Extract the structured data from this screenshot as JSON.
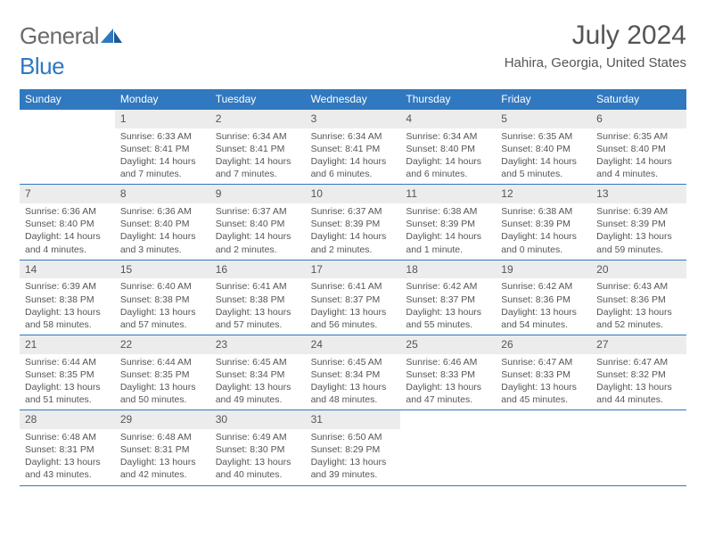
{
  "brand": {
    "part1": "General",
    "part2": "Blue"
  },
  "title": "July 2024",
  "location": "Hahira, Georgia, United States",
  "colors": {
    "header_bar": "#3078bf",
    "daynum_bg": "#ececec",
    "text": "#555555",
    "rule": "#3078bf"
  },
  "weekdays": [
    "Sunday",
    "Monday",
    "Tuesday",
    "Wednesday",
    "Thursday",
    "Friday",
    "Saturday"
  ],
  "weeks": [
    [
      {
        "n": "",
        "sr": "",
        "ss": "",
        "dl": ""
      },
      {
        "n": "1",
        "sr": "Sunrise: 6:33 AM",
        "ss": "Sunset: 8:41 PM",
        "dl": "Daylight: 14 hours and 7 minutes."
      },
      {
        "n": "2",
        "sr": "Sunrise: 6:34 AM",
        "ss": "Sunset: 8:41 PM",
        "dl": "Daylight: 14 hours and 7 minutes."
      },
      {
        "n": "3",
        "sr": "Sunrise: 6:34 AM",
        "ss": "Sunset: 8:41 PM",
        "dl": "Daylight: 14 hours and 6 minutes."
      },
      {
        "n": "4",
        "sr": "Sunrise: 6:34 AM",
        "ss": "Sunset: 8:40 PM",
        "dl": "Daylight: 14 hours and 6 minutes."
      },
      {
        "n": "5",
        "sr": "Sunrise: 6:35 AM",
        "ss": "Sunset: 8:40 PM",
        "dl": "Daylight: 14 hours and 5 minutes."
      },
      {
        "n": "6",
        "sr": "Sunrise: 6:35 AM",
        "ss": "Sunset: 8:40 PM",
        "dl": "Daylight: 14 hours and 4 minutes."
      }
    ],
    [
      {
        "n": "7",
        "sr": "Sunrise: 6:36 AM",
        "ss": "Sunset: 8:40 PM",
        "dl": "Daylight: 14 hours and 4 minutes."
      },
      {
        "n": "8",
        "sr": "Sunrise: 6:36 AM",
        "ss": "Sunset: 8:40 PM",
        "dl": "Daylight: 14 hours and 3 minutes."
      },
      {
        "n": "9",
        "sr": "Sunrise: 6:37 AM",
        "ss": "Sunset: 8:40 PM",
        "dl": "Daylight: 14 hours and 2 minutes."
      },
      {
        "n": "10",
        "sr": "Sunrise: 6:37 AM",
        "ss": "Sunset: 8:39 PM",
        "dl": "Daylight: 14 hours and 2 minutes."
      },
      {
        "n": "11",
        "sr": "Sunrise: 6:38 AM",
        "ss": "Sunset: 8:39 PM",
        "dl": "Daylight: 14 hours and 1 minute."
      },
      {
        "n": "12",
        "sr": "Sunrise: 6:38 AM",
        "ss": "Sunset: 8:39 PM",
        "dl": "Daylight: 14 hours and 0 minutes."
      },
      {
        "n": "13",
        "sr": "Sunrise: 6:39 AM",
        "ss": "Sunset: 8:39 PM",
        "dl": "Daylight: 13 hours and 59 minutes."
      }
    ],
    [
      {
        "n": "14",
        "sr": "Sunrise: 6:39 AM",
        "ss": "Sunset: 8:38 PM",
        "dl": "Daylight: 13 hours and 58 minutes."
      },
      {
        "n": "15",
        "sr": "Sunrise: 6:40 AM",
        "ss": "Sunset: 8:38 PM",
        "dl": "Daylight: 13 hours and 57 minutes."
      },
      {
        "n": "16",
        "sr": "Sunrise: 6:41 AM",
        "ss": "Sunset: 8:38 PM",
        "dl": "Daylight: 13 hours and 57 minutes."
      },
      {
        "n": "17",
        "sr": "Sunrise: 6:41 AM",
        "ss": "Sunset: 8:37 PM",
        "dl": "Daylight: 13 hours and 56 minutes."
      },
      {
        "n": "18",
        "sr": "Sunrise: 6:42 AM",
        "ss": "Sunset: 8:37 PM",
        "dl": "Daylight: 13 hours and 55 minutes."
      },
      {
        "n": "19",
        "sr": "Sunrise: 6:42 AM",
        "ss": "Sunset: 8:36 PM",
        "dl": "Daylight: 13 hours and 54 minutes."
      },
      {
        "n": "20",
        "sr": "Sunrise: 6:43 AM",
        "ss": "Sunset: 8:36 PM",
        "dl": "Daylight: 13 hours and 52 minutes."
      }
    ],
    [
      {
        "n": "21",
        "sr": "Sunrise: 6:44 AM",
        "ss": "Sunset: 8:35 PM",
        "dl": "Daylight: 13 hours and 51 minutes."
      },
      {
        "n": "22",
        "sr": "Sunrise: 6:44 AM",
        "ss": "Sunset: 8:35 PM",
        "dl": "Daylight: 13 hours and 50 minutes."
      },
      {
        "n": "23",
        "sr": "Sunrise: 6:45 AM",
        "ss": "Sunset: 8:34 PM",
        "dl": "Daylight: 13 hours and 49 minutes."
      },
      {
        "n": "24",
        "sr": "Sunrise: 6:45 AM",
        "ss": "Sunset: 8:34 PM",
        "dl": "Daylight: 13 hours and 48 minutes."
      },
      {
        "n": "25",
        "sr": "Sunrise: 6:46 AM",
        "ss": "Sunset: 8:33 PM",
        "dl": "Daylight: 13 hours and 47 minutes."
      },
      {
        "n": "26",
        "sr": "Sunrise: 6:47 AM",
        "ss": "Sunset: 8:33 PM",
        "dl": "Daylight: 13 hours and 45 minutes."
      },
      {
        "n": "27",
        "sr": "Sunrise: 6:47 AM",
        "ss": "Sunset: 8:32 PM",
        "dl": "Daylight: 13 hours and 44 minutes."
      }
    ],
    [
      {
        "n": "28",
        "sr": "Sunrise: 6:48 AM",
        "ss": "Sunset: 8:31 PM",
        "dl": "Daylight: 13 hours and 43 minutes."
      },
      {
        "n": "29",
        "sr": "Sunrise: 6:48 AM",
        "ss": "Sunset: 8:31 PM",
        "dl": "Daylight: 13 hours and 42 minutes."
      },
      {
        "n": "30",
        "sr": "Sunrise: 6:49 AM",
        "ss": "Sunset: 8:30 PM",
        "dl": "Daylight: 13 hours and 40 minutes."
      },
      {
        "n": "31",
        "sr": "Sunrise: 6:50 AM",
        "ss": "Sunset: 8:29 PM",
        "dl": "Daylight: 13 hours and 39 minutes."
      },
      {
        "n": "",
        "sr": "",
        "ss": "",
        "dl": ""
      },
      {
        "n": "",
        "sr": "",
        "ss": "",
        "dl": ""
      },
      {
        "n": "",
        "sr": "",
        "ss": "",
        "dl": ""
      }
    ]
  ]
}
